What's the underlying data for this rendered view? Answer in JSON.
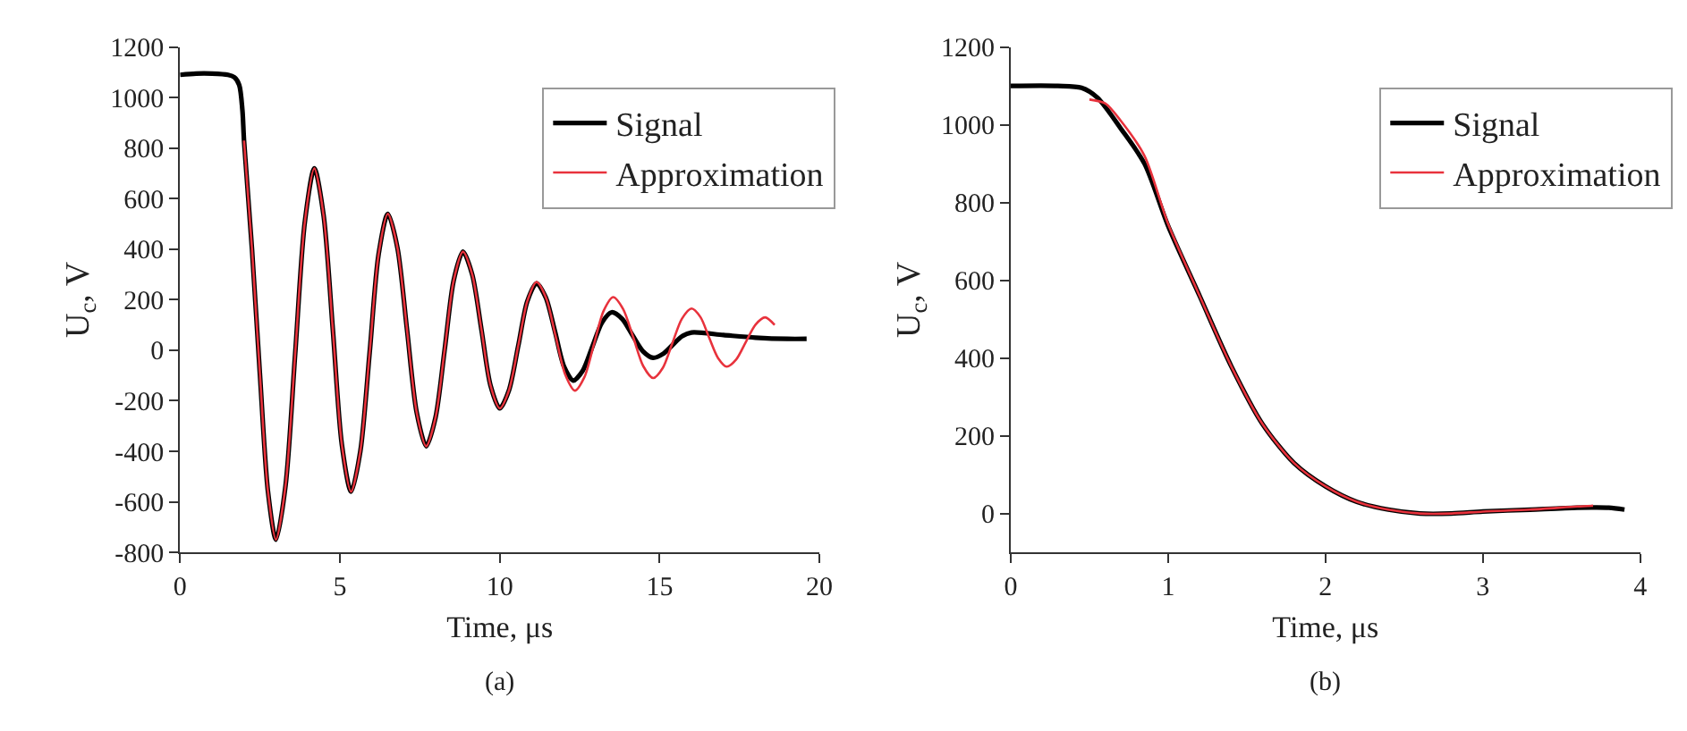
{
  "chart_data": [
    {
      "type": "line",
      "xlabel": "Time, μs",
      "ylabel": "U$_{c}$, V",
      "xlim": [
        0,
        20
      ],
      "ylim": [
        -800,
        1200
      ],
      "xticks": [
        0,
        5,
        10,
        15,
        20
      ],
      "yticks": [
        -800,
        -600,
        -400,
        -200,
        0,
        200,
        400,
        600,
        800,
        1000,
        1200
      ],
      "legend": "top right",
      "marker": "none",
      "line_style": "solid",
      "annotations": [
        "(a)"
      ],
      "series": [
        {
          "name": "Signal",
          "color": "#000000",
          "x": [
            0,
            0.5,
            1.0,
            1.5,
            1.7,
            1.85,
            1.95,
            2.0,
            2.25,
            2.5,
            2.75,
            3.0,
            3.3,
            3.6,
            3.9,
            4.2,
            4.49,
            4.78,
            5.06,
            5.35,
            5.64,
            5.93,
            6.21,
            6.5,
            6.8,
            7.1,
            7.4,
            7.7,
            7.99,
            8.28,
            8.56,
            8.85,
            9.14,
            9.43,
            9.71,
            10.0,
            10.29,
            10.58,
            10.86,
            11.15,
            11.44,
            11.73,
            12.01,
            12.3,
            12.6,
            12.9,
            13.2,
            13.5,
            13.83,
            14.15,
            14.48,
            14.8,
            15.1,
            15.4,
            15.7,
            16.0,
            17.0,
            18.0,
            19.0,
            19.6
          ],
          "values": [
            1090,
            1095,
            1095,
            1090,
            1080,
            1050,
            950,
            830,
            400,
            -100,
            -560,
            -750,
            -535,
            -15,
            505,
            720,
            533,
            80,
            -373,
            -560,
            -399,
            -10,
            379,
            540,
            405,
            80,
            -245,
            -380,
            -267,
            5,
            277,
            390,
            299,
            80,
            -139,
            -230,
            -158,
            18,
            193,
            265,
            209,
            73,
            -64,
            -120,
            -80,
            15,
            110,
            150,
            124,
            60,
            -4,
            -30,
            -15,
            20,
            55,
            70,
            60,
            50,
            45,
            45
          ]
        },
        {
          "name": "Approximation",
          "color": "#e8323c",
          "x": [
            2.0,
            2.25,
            2.5,
            2.75,
            3.0,
            3.3,
            3.6,
            3.9,
            4.2,
            4.49,
            4.78,
            5.06,
            5.35,
            5.64,
            5.93,
            6.21,
            6.5,
            6.8,
            7.1,
            7.4,
            7.7,
            7.99,
            8.28,
            8.56,
            8.85,
            9.14,
            9.43,
            9.71,
            10.0,
            10.29,
            10.58,
            10.86,
            11.15,
            11.45,
            11.75,
            12.05,
            12.35,
            12.65,
            12.95,
            13.25,
            13.55,
            13.86,
            14.18,
            14.49,
            14.8,
            15.1,
            15.4,
            15.7,
            16.0,
            16.28,
            16.55,
            16.83,
            17.1,
            17.4,
            17.7,
            18.0,
            18.3,
            18.6
          ],
          "values": [
            830,
            400,
            -100,
            -560,
            -750,
            -535,
            -15,
            505,
            720,
            533,
            80,
            -373,
            -560,
            -399,
            -10,
            379,
            540,
            405,
            80,
            -245,
            -380,
            -267,
            5,
            277,
            390,
            299,
            80,
            -139,
            -230,
            -158,
            18,
            193,
            270,
            207,
            55,
            -97,
            -160,
            -106,
            25,
            156,
            210,
            163,
            50,
            -63,
            -110,
            -70,
            28,
            125,
            165,
            131,
            50,
            -31,
            -65,
            -36,
            33,
            101,
            130,
            100
          ]
        }
      ]
    },
    {
      "type": "line",
      "xlabel": "Time, μs",
      "ylabel": "U$_{c}$, V",
      "xlim": [
        0,
        4
      ],
      "ylim": [
        -100,
        1200
      ],
      "xticks": [
        0,
        1,
        2,
        3,
        4
      ],
      "yticks": [
        0,
        200,
        400,
        600,
        800,
        1000,
        1200
      ],
      "legend": "top right",
      "marker": "none",
      "line_style": "solid",
      "annotations": [
        "(b)"
      ],
      "series": [
        {
          "name": "Signal",
          "color": "#000000",
          "x": [
            0,
            0.3,
            0.45,
            0.55,
            0.7,
            0.85,
            1.0,
            1.2,
            1.4,
            1.6,
            1.8,
            2.0,
            2.2,
            2.4,
            2.6,
            2.8,
            3.0,
            3.3,
            3.6,
            3.8,
            3.9
          ],
          "values": [
            1100,
            1100,
            1095,
            1070,
            990,
            900,
            740,
            560,
            380,
            230,
            130,
            70,
            30,
            10,
            0,
            0,
            5,
            10,
            15,
            15,
            10
          ]
        },
        {
          "name": "Approximation",
          "color": "#e8323c",
          "x": [
            0.5,
            0.6,
            0.7,
            0.85,
            1.0,
            1.2,
            1.4,
            1.6,
            1.8,
            2.0,
            2.2,
            2.4,
            2.6,
            2.8,
            3.0,
            3.3,
            3.6,
            3.7
          ],
          "values": [
            1065,
            1055,
            1010,
            920,
            745,
            560,
            380,
            230,
            130,
            70,
            30,
            10,
            0,
            0,
            5,
            10,
            18,
            20
          ]
        }
      ]
    }
  ]
}
